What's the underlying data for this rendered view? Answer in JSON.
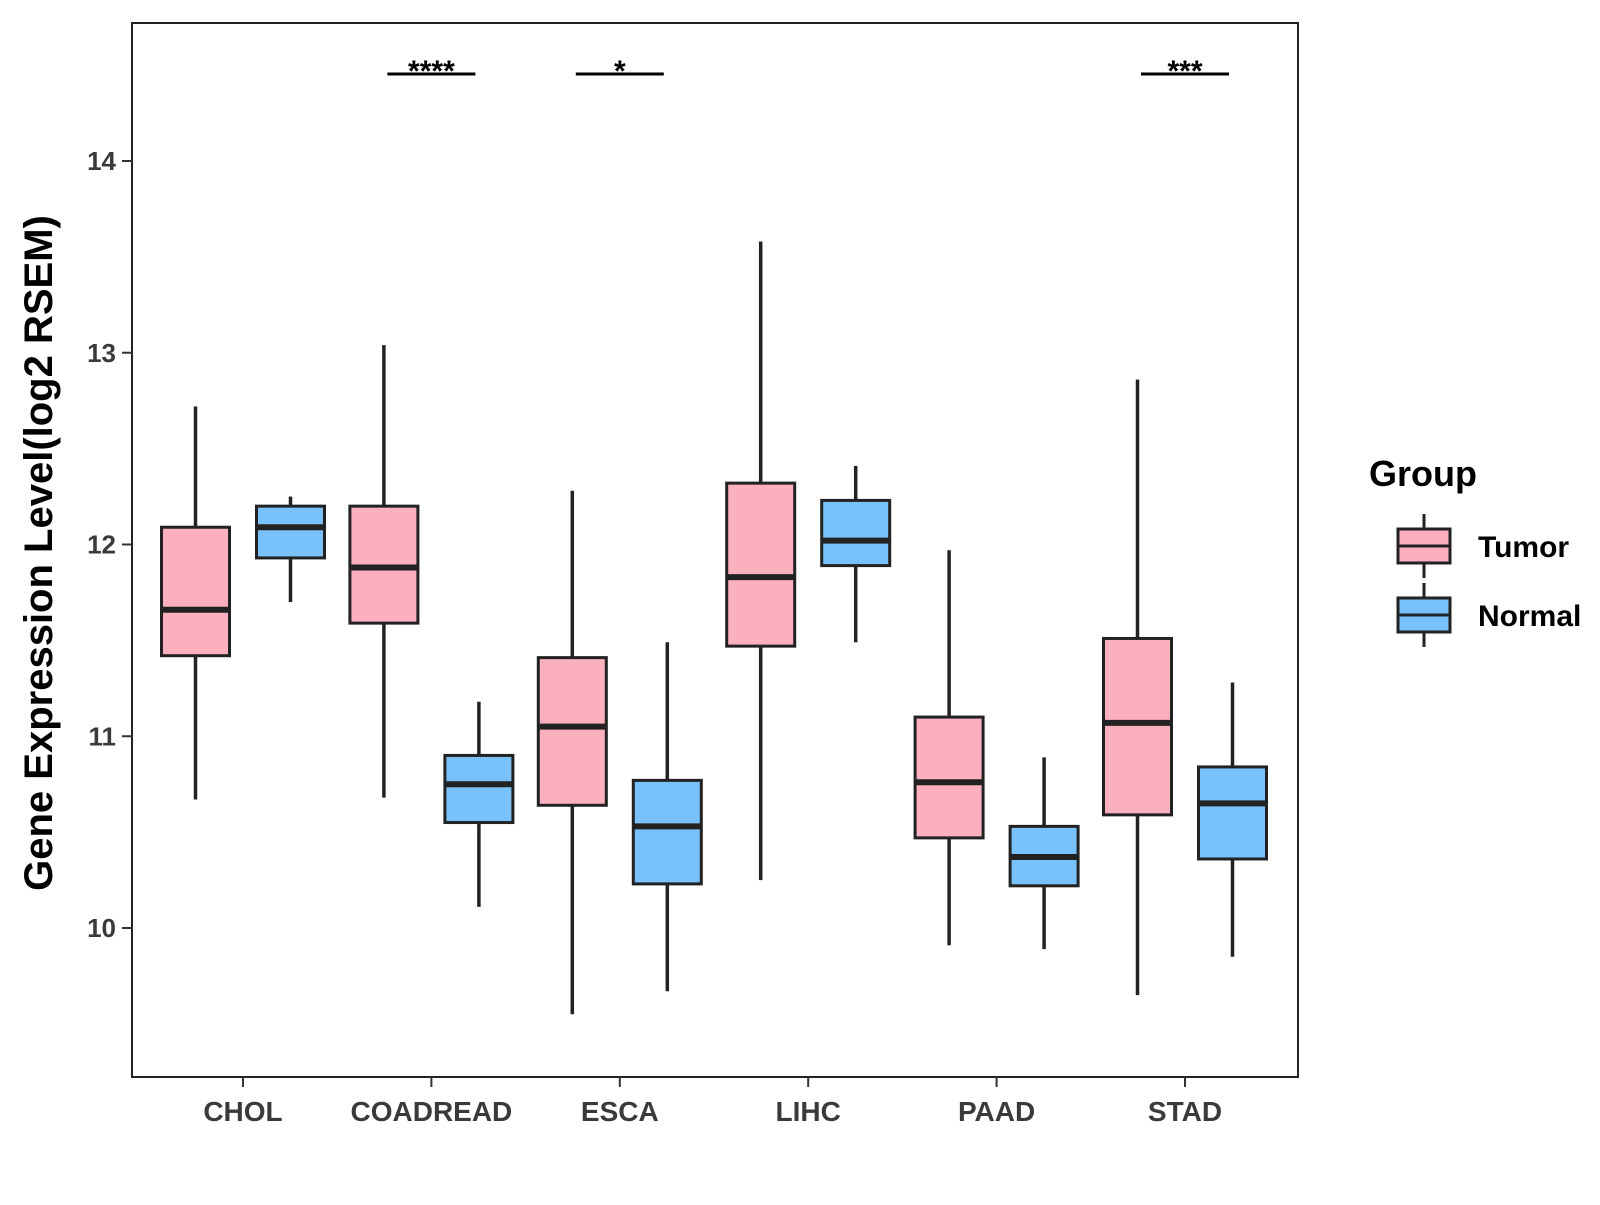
{
  "chart_data": {
    "type": "boxplot",
    "title": "",
    "xlabel": "",
    "ylabel": "Gene Expression Level(log2 RSEM)",
    "ylim": [
      9.2,
      14.7
    ],
    "yticks": [
      10,
      11,
      12,
      13,
      14
    ],
    "categories": [
      "CHOL",
      "COADREAD",
      "ESCA",
      "LIHC",
      "PAAD",
      "STAD"
    ],
    "legend": {
      "title": "Group",
      "position": "right"
    },
    "series": [
      {
        "name": "Tumor",
        "color": "#FBB0C0",
        "boxes": [
          {
            "category": "CHOL",
            "min": 10.67,
            "q1": 11.42,
            "median": 11.66,
            "q3": 12.09,
            "max": 12.72
          },
          {
            "category": "COADREAD",
            "min": 10.68,
            "q1": 11.59,
            "median": 11.88,
            "q3": 12.2,
            "max": 13.04
          },
          {
            "category": "ESCA",
            "min": 9.55,
            "q1": 10.64,
            "median": 11.05,
            "q3": 11.41,
            "max": 12.28
          },
          {
            "category": "LIHC",
            "min": 10.25,
            "q1": 11.47,
            "median": 11.83,
            "q3": 12.32,
            "max": 13.58
          },
          {
            "category": "PAAD",
            "min": 9.91,
            "q1": 10.47,
            "median": 10.76,
            "q3": 11.1,
            "max": 11.97
          },
          {
            "category": "STAD",
            "min": 9.65,
            "q1": 10.59,
            "median": 11.07,
            "q3": 11.51,
            "max": 12.86
          }
        ]
      },
      {
        "name": "Normal",
        "color": "#79C1FA",
        "boxes": [
          {
            "category": "CHOL",
            "min": 11.7,
            "q1": 11.93,
            "median": 12.09,
            "q3": 12.2,
            "max": 12.25
          },
          {
            "category": "COADREAD",
            "min": 10.11,
            "q1": 10.55,
            "median": 10.75,
            "q3": 10.9,
            "max": 11.18
          },
          {
            "category": "ESCA",
            "min": 9.67,
            "q1": 10.23,
            "median": 10.53,
            "q3": 10.77,
            "max": 11.49
          },
          {
            "category": "LIHC",
            "min": 11.49,
            "q1": 11.89,
            "median": 12.02,
            "q3": 12.23,
            "max": 12.41
          },
          {
            "category": "PAAD",
            "min": 9.89,
            "q1": 10.22,
            "median": 10.37,
            "q3": 10.53,
            "max": 10.89
          },
          {
            "category": "STAD",
            "min": 9.85,
            "q1": 10.36,
            "median": 10.65,
            "q3": 10.84,
            "max": 11.28
          }
        ]
      }
    ],
    "significance": [
      {
        "category": "COADREAD",
        "label": "****"
      },
      {
        "category": "ESCA",
        "label": "*"
      },
      {
        "category": "STAD",
        "label": "***"
      }
    ]
  }
}
